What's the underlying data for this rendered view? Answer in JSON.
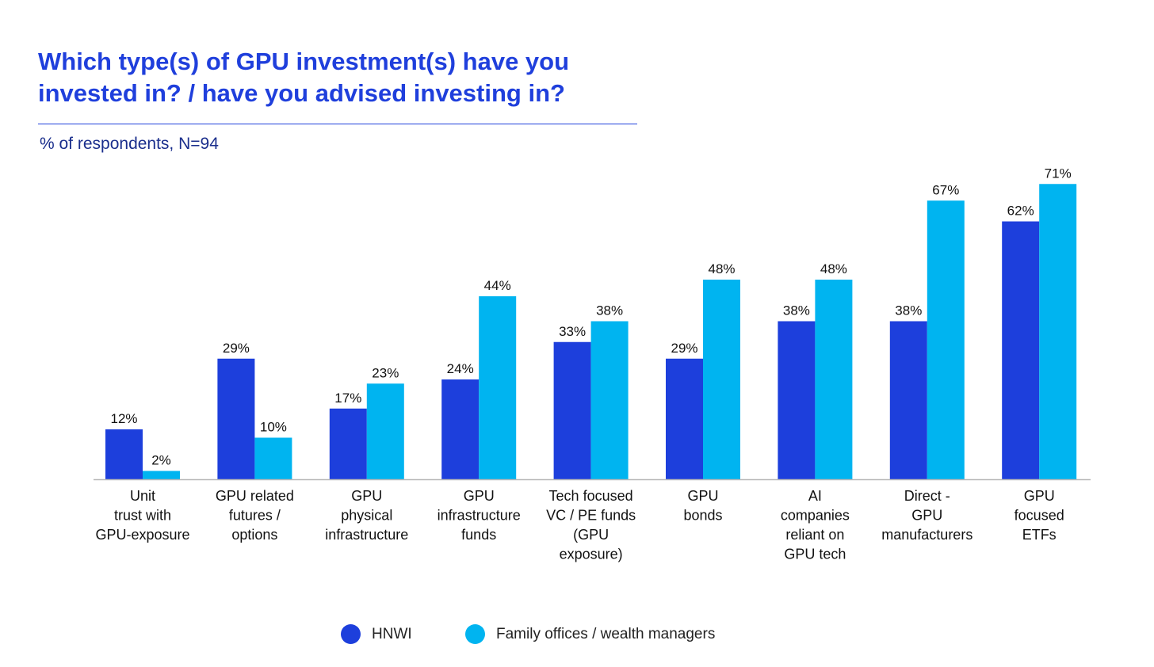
{
  "chart_data": {
    "type": "bar",
    "title": "Which type(s) of GPU investment(s) have you invested in? / have you advised investing in?",
    "subtitle": "% of respondents, N=94",
    "categories": [
      [
        "Unit",
        "trust with",
        "GPU-exposure"
      ],
      [
        "GPU related",
        "futures /",
        "options"
      ],
      [
        "GPU",
        "physical",
        "infrastructure"
      ],
      [
        "GPU",
        "infrastructure",
        "funds"
      ],
      [
        "Tech focused",
        "VC / PE funds",
        "(GPU",
        "exposure)"
      ],
      [
        "GPU",
        "bonds"
      ],
      [
        "AI",
        "companies",
        "reliant on",
        "GPU tech"
      ],
      [
        "Direct -",
        "GPU",
        "manufacturers"
      ],
      [
        "GPU",
        "focused",
        "ETFs"
      ]
    ],
    "series": [
      {
        "name": "HNWI",
        "color": "#1d3fdc",
        "values": [
          12,
          29,
          17,
          24,
          33,
          29,
          38,
          38,
          62
        ]
      },
      {
        "name": "Family offices / wealth managers",
        "color": "#00b4f0",
        "values": [
          2,
          10,
          23,
          44,
          38,
          48,
          48,
          67,
          71
        ]
      }
    ],
    "value_suffix": "%",
    "ylim": [
      0,
      71
    ],
    "legend_position": "bottom-center",
    "grid": false
  }
}
